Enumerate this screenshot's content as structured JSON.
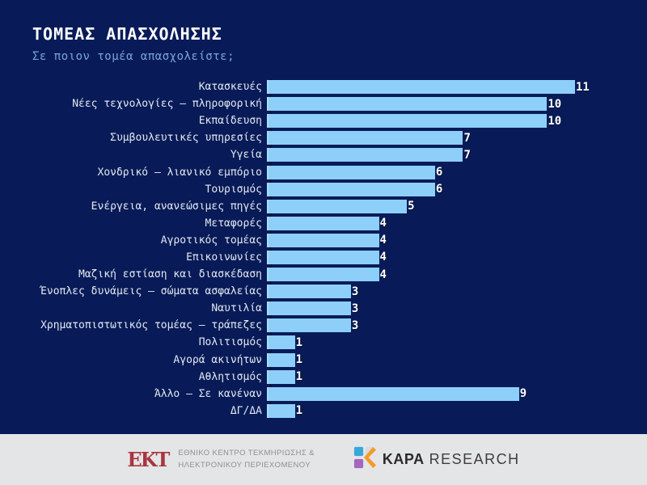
{
  "title": "ΤΟΜΕΑΣ ΑΠΑΣΧΟΛΗΣΗΣ",
  "subtitle": "Σε ποιον τομέα απασχολείστε;",
  "colors": {
    "background": "#081B58",
    "bar_fill": "#8DCFF8",
    "title_text": "#FFFFFF",
    "subtitle_text": "#7AA6DA",
    "footer_background": "#E4E5E7",
    "ekt_red": "#A8363E"
  },
  "chart_data": {
    "type": "bar",
    "orientation": "horizontal",
    "title": "ΤΟΜΕΑΣ ΑΠΑΣΧΟΛΗΣΗΣ",
    "subtitle": "Σε ποιον τομέα απασχολείστε;",
    "xlabel": "",
    "ylabel": "",
    "xlim": [
      0,
      11
    ],
    "grid": false,
    "legend": false,
    "value_labels": true,
    "categories": [
      "Κατασκευές",
      "Νέες τεχνολογίες – πληροφορική",
      "Εκπαίδευση",
      "Συμβουλευτικές υπηρεσίες",
      "Υγεία",
      "Χονδρικό – λιανικό εμπόριο",
      "Τουρισμός",
      "Ενέργεια, ανανεώσιμες πηγές",
      "Μεταφορές",
      "Αγροτικός τομέας",
      "Επικοινωνίες",
      "Μαζική εστίαση και διασκέδαση",
      "Ένοπλες δυνάμεις – σώματα ασφαλείας",
      "Ναυτιλία",
      "Χρηματοπιστωτικός τομέας – τράπεζες",
      "Πολιτισμός",
      "Αγορά ακινήτων",
      "Αθλητισμός",
      "Άλλο – Σε κανέναν",
      "ΔΓ/ΔΑ"
    ],
    "values": [
      11,
      10,
      10,
      7,
      7,
      6,
      6,
      5,
      4,
      4,
      4,
      4,
      3,
      3,
      3,
      1,
      1,
      1,
      9,
      1
    ]
  },
  "footer": {
    "ekt": {
      "logo_text": "EKT",
      "line1": "ΕΘΝΙΚΟ ΚΕΝΤΡΟ ΤΕΚΜΗΡΙΩΣΗΣ &",
      "line2": "ΗΛΕΚΤΡΟΝΙΚΟΥ ΠΕΡΙΕΧΟΜΕΝΟΥ"
    },
    "kapa": {
      "brand_bold": "KAPA",
      "brand_regular": "RESEARCH"
    }
  }
}
